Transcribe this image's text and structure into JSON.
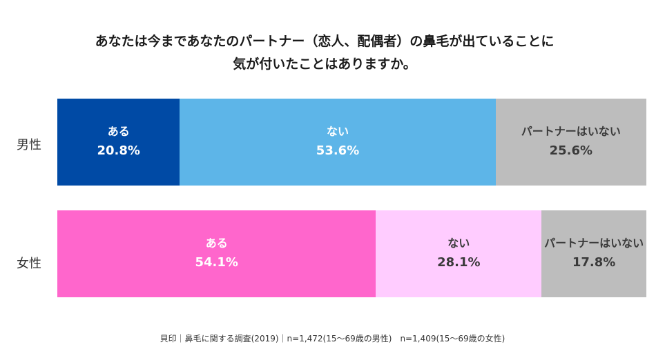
{
  "chart_data": {
    "type": "bar",
    "orientation": "horizontal-stacked-100",
    "title_lines": [
      "あなたは今まであなたのパートナー（恋人、配偶者）の鼻毛が出ていることに",
      "気が付いたことはありますか。"
    ],
    "categories": [
      "男性",
      "女性"
    ],
    "series": [
      {
        "name": "ある",
        "values": [
          20.8,
          54.1
        ],
        "colors": [
          "#004aa5",
          "#ff66cc"
        ],
        "text_color": "#ffffff"
      },
      {
        "name": "ない",
        "values": [
          53.6,
          28.1
        ],
        "colors": [
          "#5db5e8",
          "#ffccff"
        ],
        "text_colors": [
          "#ffffff",
          "#3a3a3a"
        ]
      },
      {
        "name": "パートナーはいない",
        "values": [
          25.6,
          17.8
        ],
        "colors": [
          "#bdbdbd",
          "#bdbdbd"
        ],
        "text_color": "#3a3a3a"
      }
    ],
    "value_suffix": "%",
    "footer": "貝印｜鼻毛に関する調査(2019)｜n=1,472(15～69歳の男性)　n=1,409(15～69歳の女性)"
  }
}
